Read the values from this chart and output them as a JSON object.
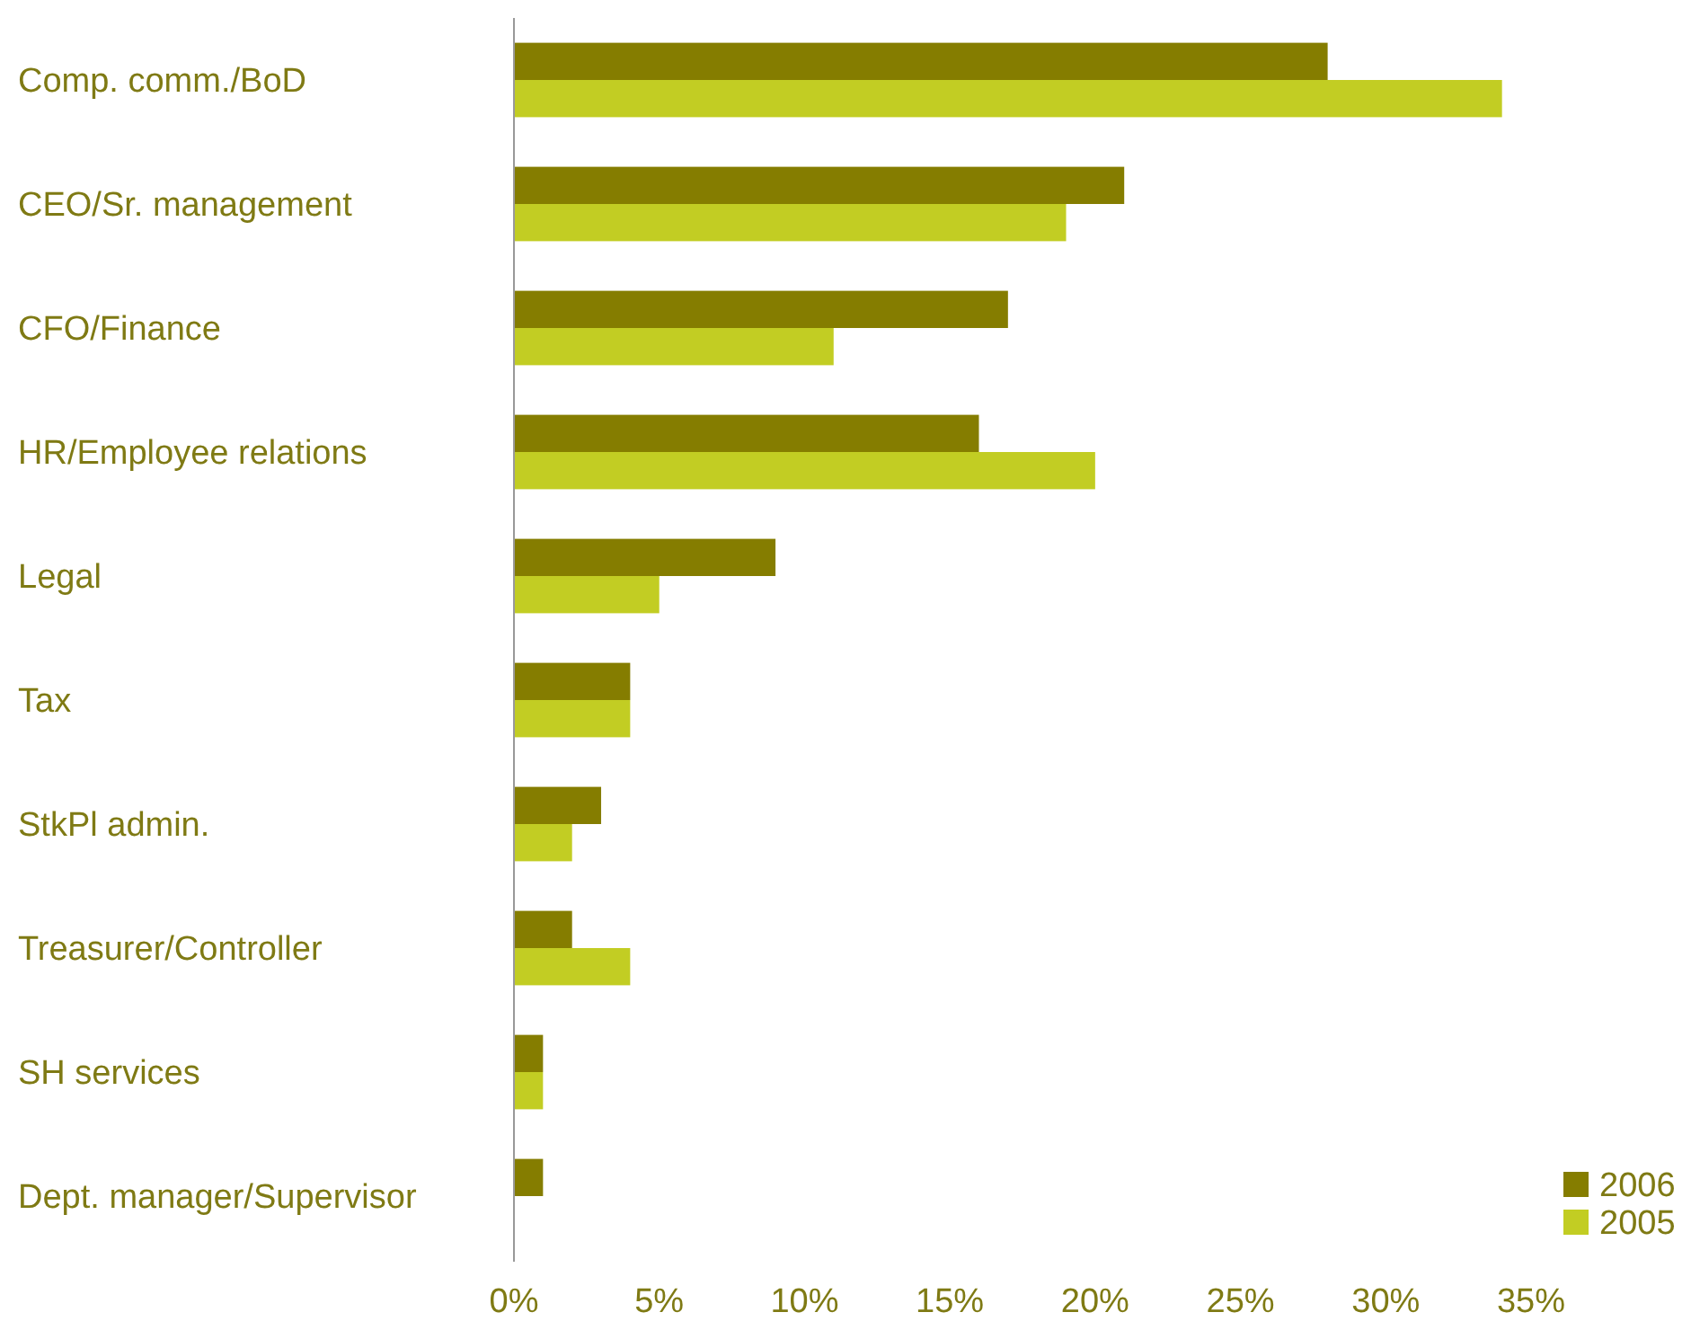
{
  "chart_data": {
    "type": "bar",
    "orientation": "horizontal",
    "categories": [
      "Comp. comm./BoD",
      "CEO/Sr. management",
      "CFO/Finance",
      "HR/Employee relations",
      "Legal",
      "Tax",
      "StkPl admin.",
      "Treasurer/Controller",
      "SH services",
      "Dept. manager/Supervisor"
    ],
    "series": [
      {
        "name": "2006",
        "color": "#857d00",
        "values": [
          28,
          21,
          17,
          16,
          9,
          4,
          3,
          2,
          1,
          1
        ]
      },
      {
        "name": "2005",
        "color": "#c2cd23",
        "values": [
          34,
          19,
          11,
          20,
          5,
          4,
          2,
          4,
          1,
          null
        ]
      }
    ],
    "xlim": [
      0,
      35
    ],
    "xticks": [
      {
        "value": 0,
        "label": "0%"
      },
      {
        "value": 5,
        "label": "5%"
      },
      {
        "value": 10,
        "label": "10%"
      },
      {
        "value": 15,
        "label": "15%"
      },
      {
        "value": 20,
        "label": "20%"
      },
      {
        "value": 25,
        "label": "25%"
      },
      {
        "value": 30,
        "label": "30%"
      },
      {
        "value": 35,
        "label": "35%"
      }
    ],
    "grid": false,
    "legend": "bottom right"
  }
}
